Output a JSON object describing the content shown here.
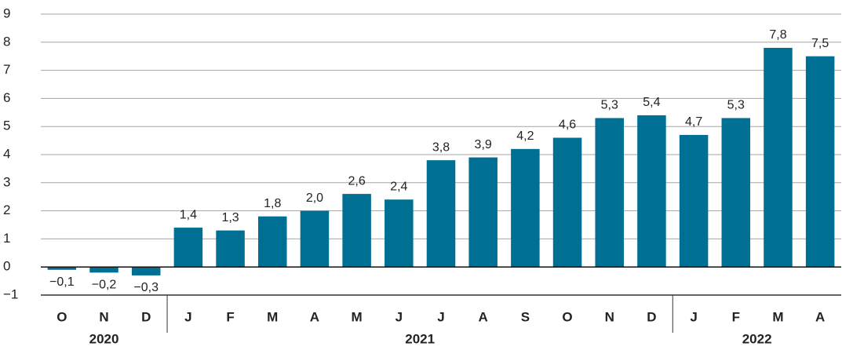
{
  "chart_data": {
    "type": "bar",
    "categories": [
      "O",
      "N",
      "D",
      "J",
      "F",
      "M",
      "A",
      "M",
      "J",
      "J",
      "A",
      "S",
      "O",
      "N",
      "D",
      "J",
      "F",
      "M",
      "A"
    ],
    "values": [
      -0.1,
      -0.2,
      -0.3,
      1.4,
      1.3,
      1.8,
      2.0,
      2.6,
      2.4,
      3.8,
      3.9,
      4.2,
      4.6,
      5.3,
      5.4,
      4.7,
      5.3,
      7.8,
      7.5
    ],
    "value_labels": [
      "−0,1",
      "−0,2",
      "−0,3",
      "1,4",
      "1,3",
      "1,8",
      "2,0",
      "2,6",
      "2,4",
      "3,8",
      "3,9",
      "4,2",
      "4,6",
      "5,3",
      "5,4",
      "4,7",
      "5,3",
      "7,8",
      "7,5"
    ],
    "x_groups": [
      {
        "label": "2020",
        "span": 3
      },
      {
        "label": "2021",
        "span": 12
      },
      {
        "label": "2022",
        "span": 4
      }
    ],
    "color": "#006f94",
    "ylim": [
      -1,
      9
    ],
    "yticks": [
      {
        "value": -1,
        "label": "−1"
      },
      0,
      1,
      2,
      3,
      4,
      5,
      6,
      7,
      8,
      9
    ],
    "grid": true
  }
}
